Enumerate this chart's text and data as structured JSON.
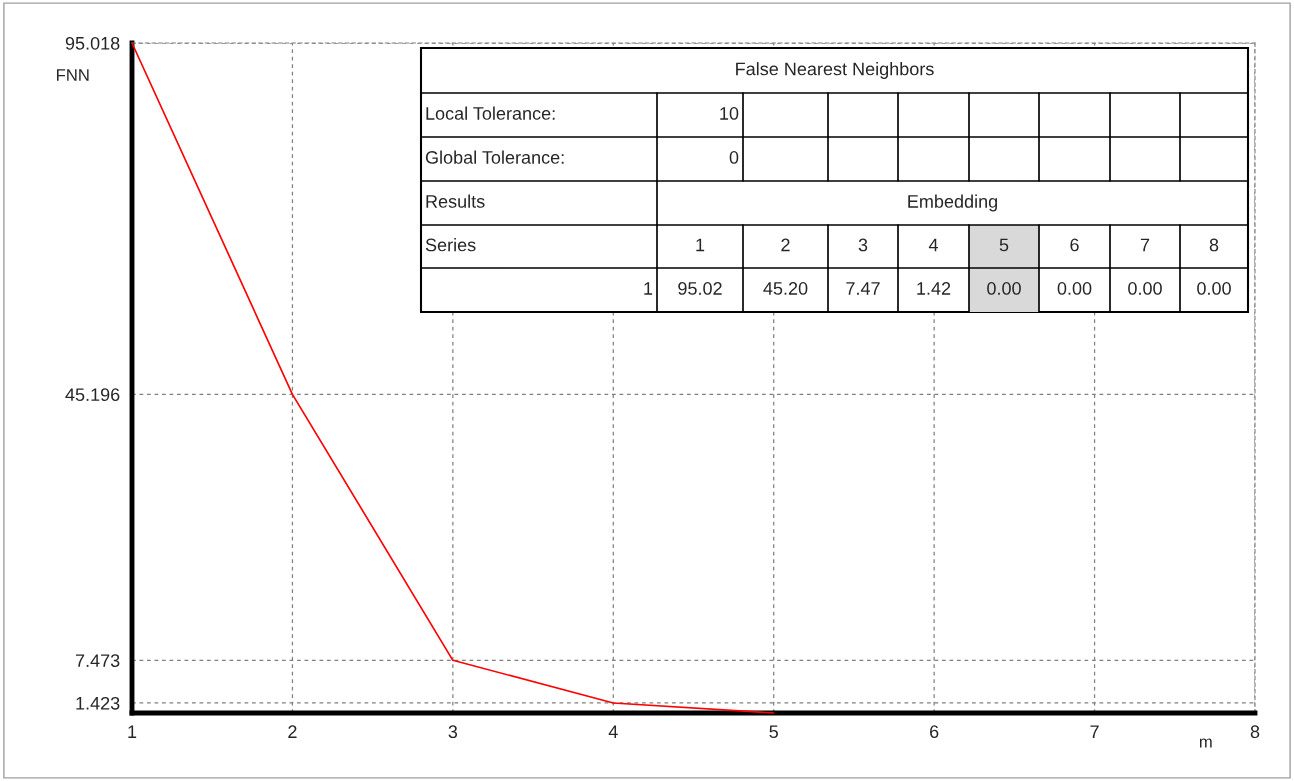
{
  "chart_data": {
    "type": "line",
    "xlabel": "m",
    "ylabel": "FNN",
    "x": [
      1,
      2,
      3,
      4,
      5
    ],
    "series": [
      {
        "color": "#ff0000",
        "values": [
          95.018,
          45.196,
          7.473,
          1.423,
          0
        ]
      }
    ],
    "xlim": [
      1,
      8
    ],
    "xticks": [
      1,
      2,
      3,
      4,
      5,
      6,
      7,
      8
    ],
    "ylim": [
      0,
      95.018
    ],
    "yticks": [
      1.423,
      7.473,
      45.196,
      95.018
    ],
    "grid": true,
    "marker": "none",
    "line_style": "solid",
    "annotations": [
      "False Nearest Neighbors",
      "Local Tolerance:",
      "10",
      "Global Tolerance:",
      "0",
      "Results",
      "Embedding",
      "Series",
      "1",
      "2",
      "3",
      "4",
      "5",
      "6",
      "7",
      "8",
      "1",
      "95.02",
      "45.20",
      "7.47",
      "1.42",
      "0.00",
      "0.00",
      "0.00",
      "0.00"
    ]
  }
}
